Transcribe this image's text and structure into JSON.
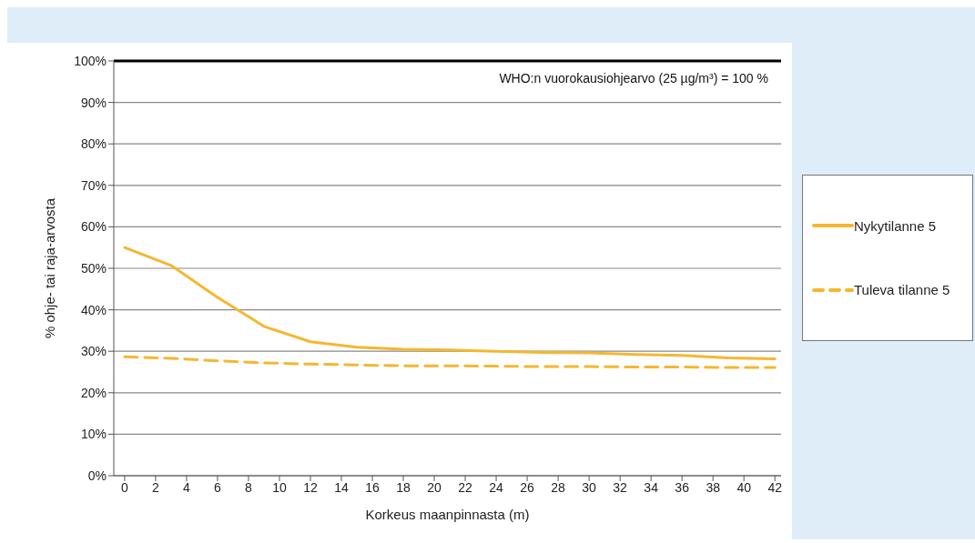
{
  "chart_data": {
    "type": "line",
    "xlabel": "Korkeus maanpinnasta (m)",
    "ylabel": "% ohje- tai raja-arvosta",
    "x": [
      0,
      3,
      6,
      9,
      12,
      15,
      18,
      21,
      24,
      27,
      30,
      33,
      36,
      39,
      42
    ],
    "series": [
      {
        "name": "Nykytilanne 5",
        "color": "#f5b72f",
        "line_style": "solid",
        "values": [
          55,
          50.7,
          43,
          36,
          32.3,
          31,
          30.5,
          30.3,
          30,
          29.7,
          29.6,
          29.2,
          29,
          28.4,
          28.2
        ]
      },
      {
        "name": "Tuleva tilanne 5",
        "color": "#f5b72f",
        "line_style": "dashed",
        "values": [
          28.7,
          28.3,
          27.7,
          27.2,
          26.9,
          26.7,
          26.5,
          26.5,
          26.4,
          26.3,
          26.3,
          26.2,
          26.2,
          26.1,
          26.1
        ]
      }
    ],
    "xlim": [
      -0.7,
      42.4
    ],
    "xticks": [
      0,
      2,
      4,
      6,
      8,
      10,
      12,
      14,
      16,
      18,
      20,
      22,
      24,
      26,
      28,
      30,
      32,
      34,
      36,
      38,
      40,
      42
    ],
    "ylim": [
      0,
      100
    ],
    "yticks": [
      {
        "value": 0,
        "label": "0%"
      },
      {
        "value": 10,
        "label": "10%"
      },
      {
        "value": 20,
        "label": "20%"
      },
      {
        "value": 30,
        "label": "30%"
      },
      {
        "value": 40,
        "label": "40%"
      },
      {
        "value": 50,
        "label": "50%"
      },
      {
        "value": 60,
        "label": "60%"
      },
      {
        "value": 70,
        "label": "70%"
      },
      {
        "value": 80,
        "label": "80%"
      },
      {
        "value": 90,
        "label": "90%"
      },
      {
        "value": 100,
        "label": "100%"
      }
    ],
    "ref_lines": [
      {
        "axis": "y",
        "value": 100,
        "label": "WHO:n vuorokausiohjearvo (25 µg/m³) = 100 %",
        "color": "#000000"
      }
    ],
    "grid": "y",
    "legend": "right",
    "marker": "none"
  }
}
